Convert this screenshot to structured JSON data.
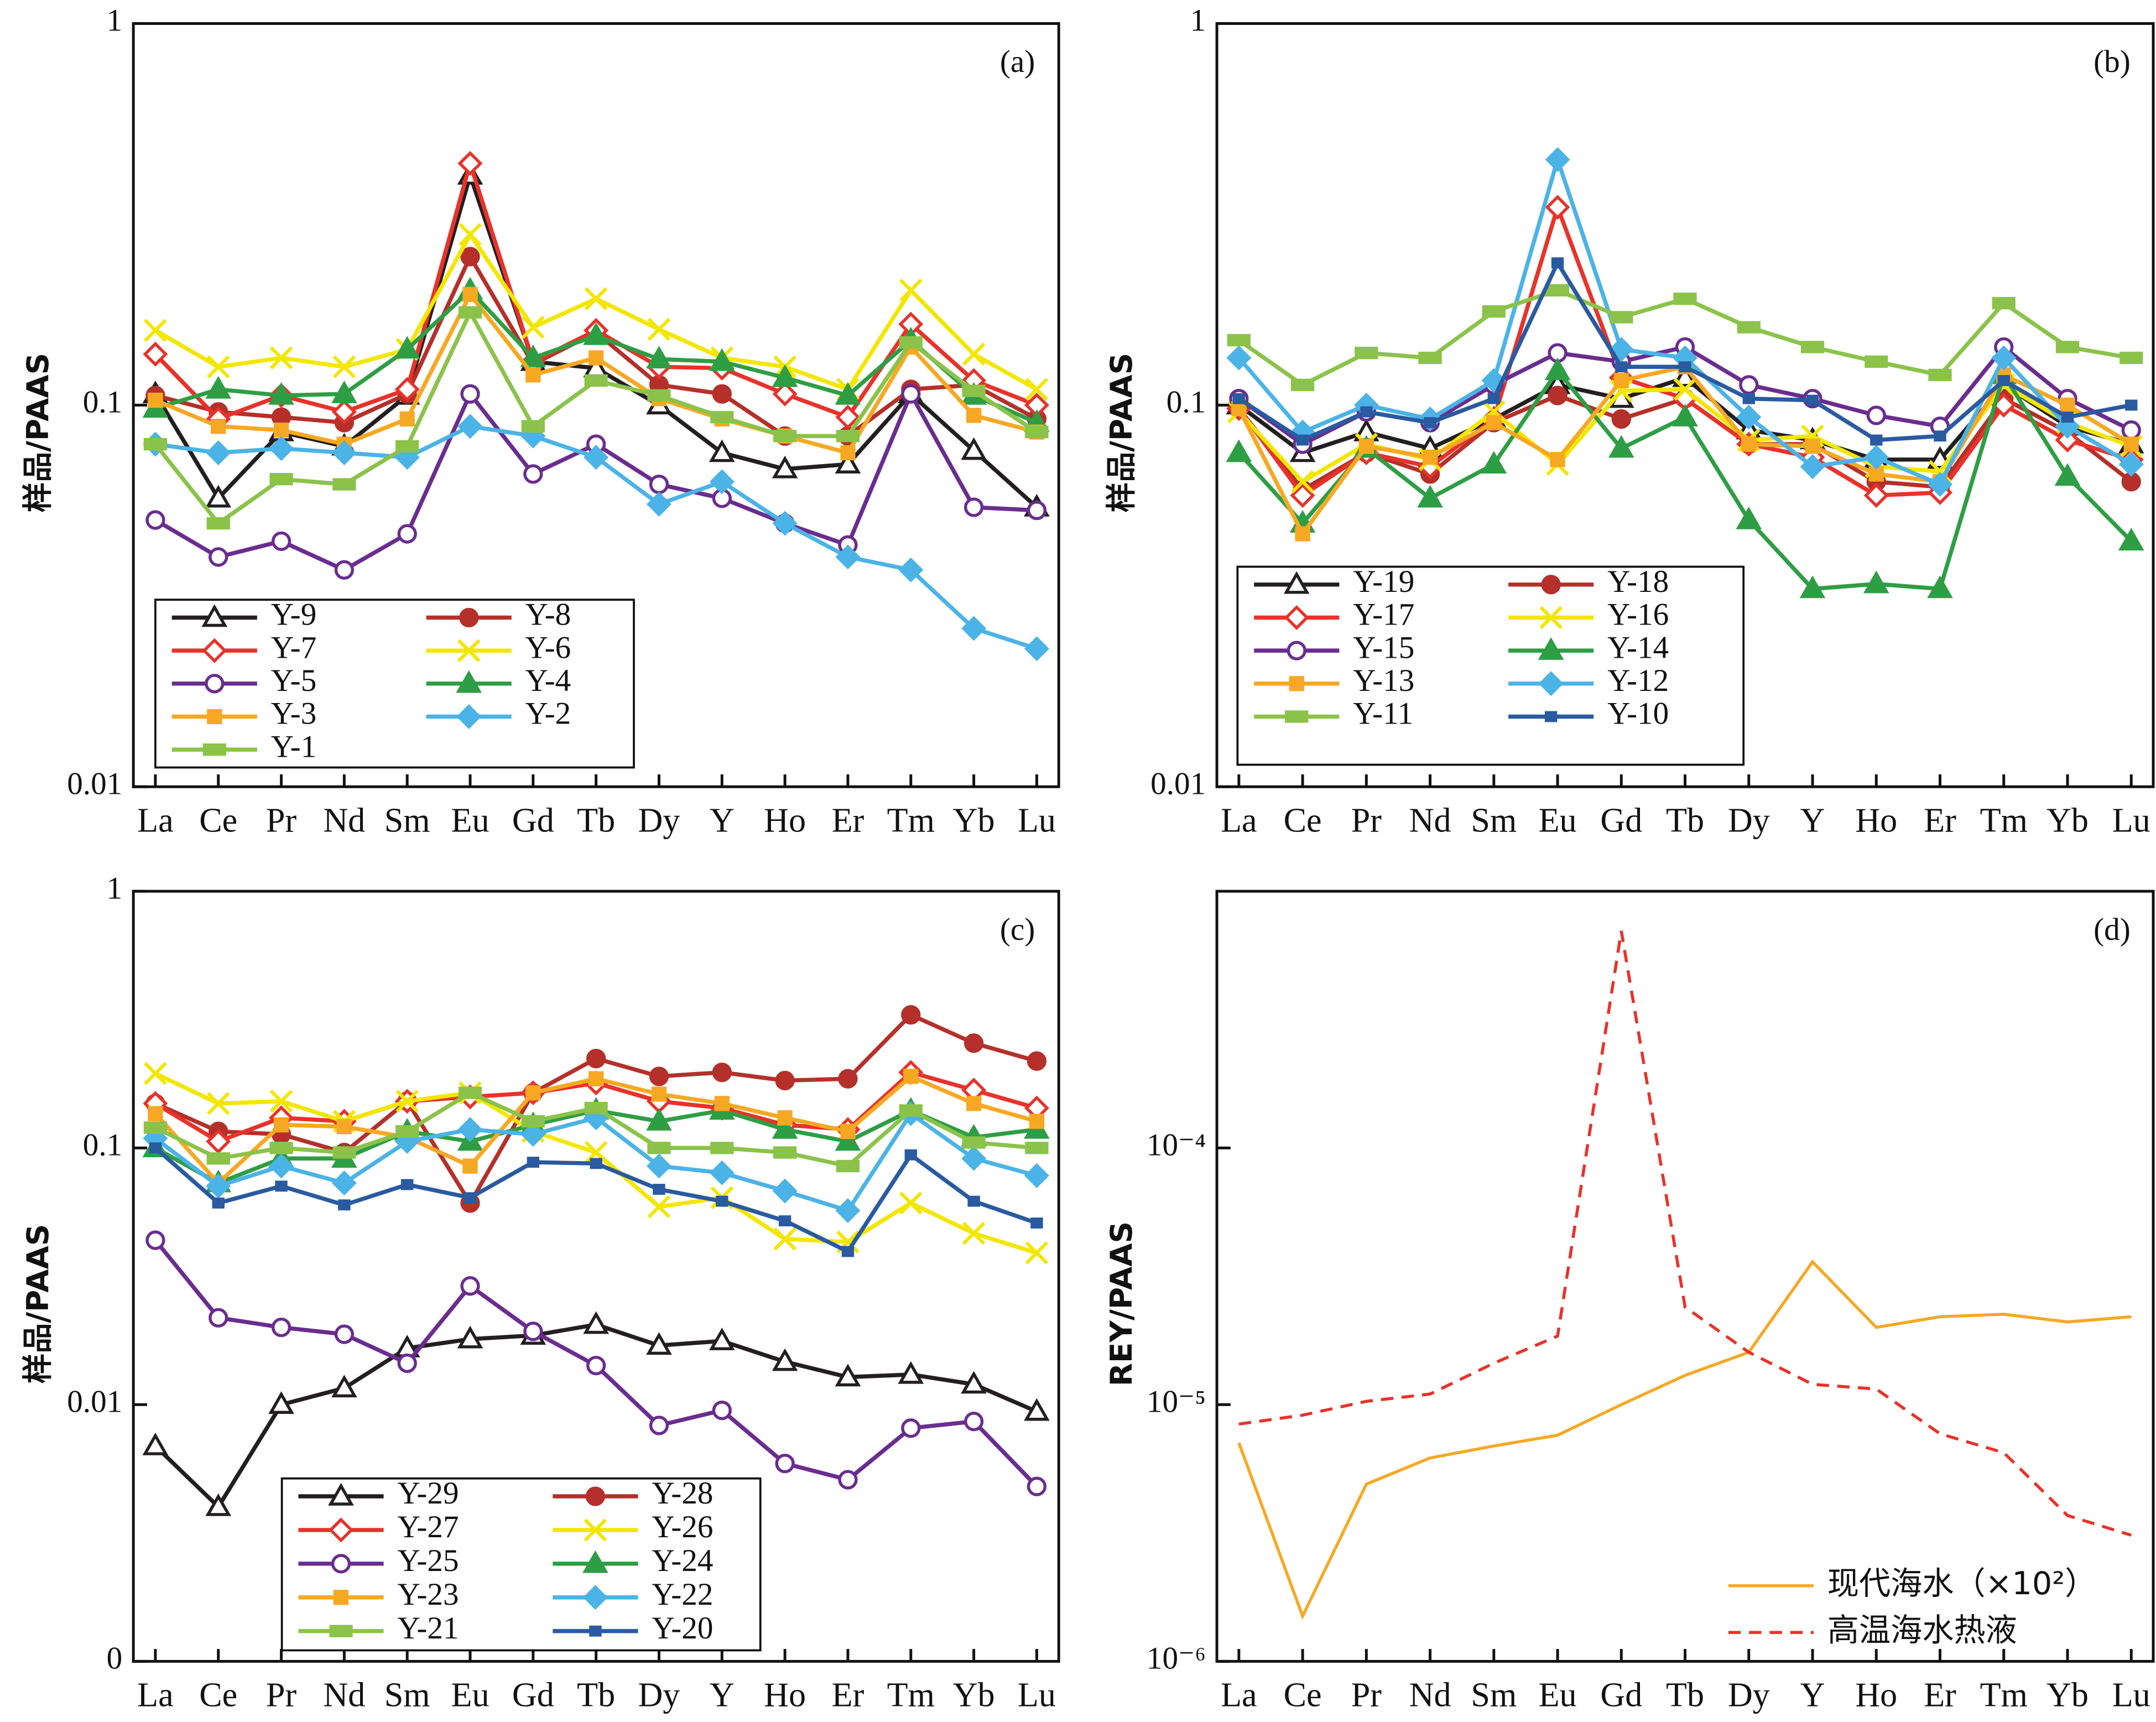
{
  "chart_data": [
    {
      "type": "line",
      "annotation": "(a)",
      "ylabel": "样品/PAAS",
      "log_y": true,
      "categories": [
        "La",
        "Ce",
        "Pr",
        "Nd",
        "Sm",
        "Eu",
        "Gd",
        "Tb",
        "Dy",
        "Y",
        "Ho",
        "Er",
        "Tm",
        "Yb",
        "Lu"
      ],
      "ylim": [
        0.01,
        1
      ],
      "yticks": [
        0.01,
        0.1,
        1
      ],
      "series": [
        {
          "name": "Y-9",
          "color": "#231f20",
          "marker": "triangle-open",
          "values": [
            0.107,
            0.057,
            0.085,
            0.078,
            0.106,
            0.4,
            0.13,
            0.125,
            0.1,
            0.075,
            0.068,
            0.07,
            0.107,
            0.076,
            0.054
          ]
        },
        {
          "name": "Y-8",
          "color": "#b5302a",
          "marker": "circle",
          "values": [
            0.106,
            0.096,
            0.093,
            0.09,
            0.107,
            0.245,
            0.128,
            0.155,
            0.113,
            0.107,
            0.083,
            0.083,
            0.11,
            0.113,
            0.092
          ]
        },
        {
          "name": "Y-7",
          "color": "#e8322a",
          "marker": "diamond-open",
          "values": [
            0.136,
            0.092,
            0.106,
            0.096,
            0.11,
            0.43,
            0.13,
            0.157,
            0.126,
            0.125,
            0.107,
            0.093,
            0.163,
            0.116,
            0.1
          ]
        },
        {
          "name": "Y-6",
          "color": "#f3e600",
          "marker": "x",
          "values": [
            0.157,
            0.126,
            0.133,
            0.126,
            0.14,
            0.28,
            0.16,
            0.19,
            0.158,
            0.133,
            0.126,
            0.11,
            0.2,
            0.136,
            0.11
          ]
        },
        {
          "name": "Y-5",
          "color": "#6a2d8f",
          "marker": "circle-open",
          "values": [
            0.05,
            0.04,
            0.044,
            0.037,
            0.046,
            0.107,
            0.066,
            0.079,
            0.062,
            0.057,
            0.049,
            0.043,
            0.107,
            0.054,
            0.053
          ]
        },
        {
          "name": "Y-4",
          "color": "#2e9e44",
          "marker": "triangle",
          "values": [
            0.098,
            0.11,
            0.106,
            0.107,
            0.14,
            0.2,
            0.133,
            0.152,
            0.132,
            0.13,
            0.118,
            0.106,
            0.148,
            0.106,
            0.09
          ]
        },
        {
          "name": "Y-3",
          "color": "#f7a823",
          "marker": "square",
          "values": [
            0.103,
            0.088,
            0.086,
            0.079,
            0.092,
            0.195,
            0.12,
            0.133,
            0.104,
            0.092,
            0.083,
            0.075,
            0.142,
            0.094,
            0.085
          ]
        },
        {
          "name": "Y-2",
          "color": "#4bb3e6",
          "marker": "diamond",
          "values": [
            0.079,
            0.075,
            0.077,
            0.075,
            0.073,
            0.088,
            0.083,
            0.073,
            0.055,
            0.063,
            0.049,
            0.04,
            0.037,
            0.026,
            0.023
          ]
        },
        {
          "name": "Y-1",
          "color": "#8bc34a",
          "marker": "dash",
          "values": [
            0.079,
            0.049,
            0.064,
            0.062,
            0.078,
            0.175,
            0.088,
            0.116,
            0.106,
            0.093,
            0.083,
            0.083,
            0.146,
            0.109,
            0.085
          ]
        }
      ]
    },
    {
      "type": "line",
      "annotation": "(b)",
      "ylabel": "样品/PAAS",
      "log_y": true,
      "categories": [
        "La",
        "Ce",
        "Pr",
        "Nd",
        "Sm",
        "Eu",
        "Gd",
        "Tb",
        "Dy",
        "Y",
        "Ho",
        "Er",
        "Tm",
        "Yb",
        "Lu"
      ],
      "ylim": [
        0.01,
        1
      ],
      "yticks": [
        0.01,
        0.1,
        1
      ],
      "series": [
        {
          "name": "Y-19",
          "color": "#231f20",
          "marker": "triangle-open",
          "values": [
            0.1,
            0.075,
            0.085,
            0.077,
            0.092,
            0.113,
            0.104,
            0.118,
            0.086,
            0.081,
            0.072,
            0.072,
            0.113,
            0.088,
            0.079
          ]
        },
        {
          "name": "Y-18",
          "color": "#b5302a",
          "marker": "circle",
          "values": [
            0.098,
            0.06,
            0.075,
            0.066,
            0.09,
            0.106,
            0.092,
            0.104,
            0.079,
            0.079,
            0.063,
            0.061,
            0.104,
            0.085,
            0.063
          ]
        },
        {
          "name": "Y-17",
          "color": "#e8322a",
          "marker": "diamond-open",
          "values": [
            0.098,
            0.058,
            0.075,
            0.069,
            0.092,
            0.33,
            0.118,
            0.104,
            0.079,
            0.073,
            0.058,
            0.059,
            0.1,
            0.081,
            0.072
          ]
        },
        {
          "name": "Y-16",
          "color": "#f3e600",
          "marker": "x",
          "values": [
            0.096,
            0.063,
            0.079,
            0.072,
            0.096,
            0.07,
            0.109,
            0.11,
            0.081,
            0.083,
            0.069,
            0.067,
            0.113,
            0.09,
            0.078
          ]
        },
        {
          "name": "Y-15",
          "color": "#6a2d8f",
          "marker": "circle-open",
          "values": [
            0.104,
            0.079,
            0.096,
            0.09,
            0.113,
            0.137,
            0.13,
            0.142,
            0.113,
            0.104,
            0.094,
            0.088,
            0.142,
            0.104,
            0.086
          ]
        },
        {
          "name": "Y-14",
          "color": "#2e9e44",
          "marker": "triangle",
          "values": [
            0.075,
            0.049,
            0.077,
            0.057,
            0.07,
            0.123,
            0.077,
            0.093,
            0.05,
            0.033,
            0.034,
            0.033,
            0.12,
            0.065,
            0.044
          ]
        },
        {
          "name": "Y-13",
          "color": "#f7a823",
          "marker": "square",
          "values": [
            0.098,
            0.046,
            0.078,
            0.073,
            0.09,
            0.072,
            0.116,
            0.126,
            0.079,
            0.078,
            0.066,
            0.063,
            0.12,
            0.1,
            0.079
          ]
        },
        {
          "name": "Y-12",
          "color": "#4bb3e6",
          "marker": "diamond",
          "values": [
            0.133,
            0.085,
            0.1,
            0.092,
            0.116,
            0.44,
            0.14,
            0.133,
            0.093,
            0.069,
            0.073,
            0.062,
            0.133,
            0.088,
            0.07
          ]
        },
        {
          "name": "Y-11",
          "color": "#8bc34a",
          "marker": "dash",
          "values": [
            0.148,
            0.113,
            0.137,
            0.133,
            0.176,
            0.2,
            0.17,
            0.19,
            0.16,
            0.142,
            0.13,
            0.12,
            0.185,
            0.142,
            0.133
          ]
        },
        {
          "name": "Y-10",
          "color": "#2a5aa0",
          "marker": "square-small",
          "values": [
            0.104,
            0.081,
            0.096,
            0.09,
            0.104,
            0.236,
            0.126,
            0.126,
            0.104,
            0.103,
            0.081,
            0.083,
            0.116,
            0.093,
            0.1
          ]
        }
      ]
    },
    {
      "type": "line",
      "annotation": "(c)",
      "ylabel": "样品/PAAS",
      "log_y": true,
      "categories": [
        "La",
        "Ce",
        "Pr",
        "Nd",
        "Sm",
        "Eu",
        "Gd",
        "Tb",
        "Dy",
        "Y",
        "Ho",
        "Er",
        "Tm",
        "Yb",
        "Lu"
      ],
      "ylim": [
        0.001,
        1
      ],
      "yticks": [
        {
          "value": 0.001,
          "label": "0"
        },
        0.01,
        0.1,
        1
      ],
      "series": [
        {
          "name": "Y-29",
          "color": "#231f20",
          "marker": "triangle-open",
          "values": [
            0.0069,
            0.004,
            0.01,
            0.0116,
            0.0166,
            0.018,
            0.0186,
            0.0205,
            0.017,
            0.0177,
            0.0147,
            0.0128,
            0.0131,
            0.012,
            0.0094
          ]
        },
        {
          "name": "Y-28",
          "color": "#b5302a",
          "marker": "circle",
          "values": [
            0.149,
            0.116,
            0.113,
            0.096,
            0.152,
            0.061,
            0.164,
            0.223,
            0.19,
            0.197,
            0.183,
            0.186,
            0.33,
            0.256,
            0.218
          ]
        },
        {
          "name": "Y-27",
          "color": "#e8322a",
          "marker": "diamond-open",
          "values": [
            0.149,
            0.106,
            0.131,
            0.127,
            0.152,
            0.158,
            0.164,
            0.179,
            0.152,
            0.143,
            0.123,
            0.118,
            0.197,
            0.168,
            0.143
          ]
        },
        {
          "name": "Y-26",
          "color": "#f3e600",
          "marker": "x",
          "values": [
            0.195,
            0.149,
            0.152,
            0.127,
            0.152,
            0.164,
            0.116,
            0.096,
            0.059,
            0.064,
            0.0442,
            0.043,
            0.061,
            0.0465,
            0.039
          ]
        },
        {
          "name": "Y-25",
          "color": "#6a2d8f",
          "marker": "circle-open",
          "values": [
            0.0437,
            0.0218,
            0.02,
            0.0188,
            0.0145,
            0.029,
            0.0193,
            0.0142,
            0.0083,
            0.0095,
            0.0059,
            0.0051,
            0.0081,
            0.0086,
            0.0048
          ]
        },
        {
          "name": "Y-24",
          "color": "#2e9e44",
          "marker": "triangle",
          "values": [
            0.1,
            0.073,
            0.091,
            0.091,
            0.116,
            0.106,
            0.123,
            0.14,
            0.127,
            0.14,
            0.118,
            0.106,
            0.14,
            0.11,
            0.118
          ]
        },
        {
          "name": "Y-23",
          "color": "#f7a823",
          "marker": "square",
          "values": [
            0.136,
            0.073,
            0.123,
            0.121,
            0.11,
            0.085,
            0.164,
            0.186,
            0.162,
            0.149,
            0.131,
            0.116,
            0.19,
            0.149,
            0.127
          ]
        },
        {
          "name": "Y-22",
          "color": "#4bb3e6",
          "marker": "diamond",
          "values": [
            0.109,
            0.071,
            0.085,
            0.073,
            0.106,
            0.118,
            0.113,
            0.131,
            0.085,
            0.08,
            0.068,
            0.057,
            0.136,
            0.091,
            0.078
          ]
        },
        {
          "name": "Y-21",
          "color": "#8bc34a",
          "marker": "dash",
          "values": [
            0.12,
            0.091,
            0.1,
            0.096,
            0.116,
            0.164,
            0.127,
            0.143,
            0.1,
            0.1,
            0.096,
            0.085,
            0.14,
            0.105,
            0.1
          ]
        },
        {
          "name": "Y-20",
          "color": "#2a5aa0",
          "marker": "square-small",
          "values": [
            0.1,
            0.061,
            0.071,
            0.06,
            0.072,
            0.064,
            0.088,
            0.087,
            0.069,
            0.062,
            0.052,
            0.0395,
            0.094,
            0.062,
            0.051
          ]
        }
      ]
    },
    {
      "type": "line",
      "annotation": "(d)",
      "ylabel": "REY/PAAS",
      "log_y": true,
      "categories": [
        "La",
        "Ce",
        "Pr",
        "Nd",
        "Sm",
        "Eu",
        "Gd",
        "Tb",
        "Dy",
        "Y",
        "Ho",
        "Er",
        "Tm",
        "Yb",
        "Lu"
      ],
      "ylim": [
        1e-06,
        0.001
      ],
      "yticks": [
        {
          "value": 1e-06,
          "label": "10⁻⁶"
        },
        {
          "value": 1e-05,
          "label": "10⁻⁵"
        },
        {
          "value": 0.0001,
          "label": "10⁻⁴"
        }
      ],
      "series": [
        {
          "name": "现代海水（×10²）",
          "color": "#f7a823",
          "linestyle": "solid",
          "values": [
            7.1e-06,
            1.5e-06,
            4.9e-06,
            6.2e-06,
            6.9e-06,
            7.6e-06,
            1e-05,
            1.3e-05,
            1.6e-05,
            3.6e-05,
            2e-05,
            2.2e-05,
            2.25e-05,
            2.1e-05,
            2.2e-05
          ]
        },
        {
          "name": "高温海水热液",
          "color": "#e8322a",
          "linestyle": "dashed",
          "values": [
            8.4e-06,
            9.1e-06,
            1.03e-05,
            1.1e-05,
            1.45e-05,
            1.85e-05,
            0.0007,
            2.4e-05,
            1.6e-05,
            1.2e-05,
            1.15e-05,
            7.7e-06,
            6.5e-06,
            3.7e-06,
            3.1e-06
          ]
        }
      ]
    }
  ]
}
